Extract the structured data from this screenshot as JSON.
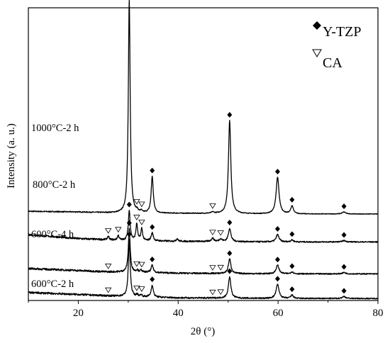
{
  "chart_data": {
    "type": "line",
    "title": "",
    "xlabel": "2θ (°)",
    "ylabel": "Intensity (a. u.)",
    "xlim": [
      10,
      80
    ],
    "xticks": [
      "20",
      "40",
      "60",
      "80"
    ],
    "grid": false,
    "legend_position": "top-right",
    "legend": [
      {
        "symbol": "◆",
        "label": "Y-TZP",
        "marker": "diamond"
      },
      {
        "symbol": "▽",
        "label": "CA",
        "marker": "triangle"
      }
    ],
    "peaks": {
      "y_tzp": [
        30.2,
        34.8,
        50.3,
        59.9,
        62.8,
        73.2
      ],
      "ca": [
        26.0,
        28.0,
        31.7,
        32.7,
        34.2,
        46.9,
        48.5
      ]
    },
    "series": [
      {
        "name": "1000°C-2 h",
        "baseline": [
          [
            10,
            13.4
          ],
          [
            20,
            13.3
          ],
          [
            30,
            13.1
          ],
          [
            40,
            13.1
          ],
          [
            60,
            13.0
          ],
          [
            80,
            13.0
          ]
        ],
        "peaks": [
          [
            30.2,
            32,
            0.22
          ],
          [
            34.8,
            5.5,
            0.25
          ],
          [
            50.3,
            14,
            0.28
          ],
          [
            59.9,
            5.5,
            0.35
          ],
          [
            62.8,
            1.2,
            0.3
          ],
          [
            73.2,
            0.3,
            0.4
          ],
          [
            31.8,
            0.25,
            0.2
          ],
          [
            32.6,
            0.25,
            0.2
          ],
          [
            46.9,
            0.2,
            0.3
          ]
        ],
        "markers": [
          {
            "x": 30.2,
            "type": "diamond"
          },
          {
            "x": 34.8,
            "type": "diamond"
          },
          {
            "x": 50.3,
            "type": "diamond"
          },
          {
            "x": 59.9,
            "type": "diamond"
          },
          {
            "x": 62.8,
            "type": "diamond"
          },
          {
            "x": 73.2,
            "type": "diamond"
          },
          {
            "x": 31.7,
            "type": "triangle"
          },
          {
            "x": 32.7,
            "type": "triangle"
          },
          {
            "x": 46.9,
            "type": "triangle"
          }
        ]
      },
      {
        "name": "800°C-2 h",
        "baseline": [
          [
            10,
            9.9
          ],
          [
            20,
            9.3
          ],
          [
            30,
            9.0
          ],
          [
            40,
            8.9
          ],
          [
            60,
            8.8
          ],
          [
            80,
            8.8
          ]
        ],
        "peaks": [
          [
            30.2,
            4.5,
            0.22
          ],
          [
            31.7,
            2.5,
            0.2
          ],
          [
            32.7,
            1.8,
            0.2
          ],
          [
            34.8,
            1.2,
            0.25
          ],
          [
            50.3,
            2.0,
            0.3
          ],
          [
            59.9,
            1.1,
            0.35
          ],
          [
            26.0,
            0.5,
            0.2
          ],
          [
            28.0,
            0.7,
            0.2
          ],
          [
            46.9,
            0.5,
            0.3
          ],
          [
            48.5,
            0.4,
            0.3
          ],
          [
            39.8,
            0.4,
            0.2
          ],
          [
            62.8,
            0.3,
            0.3
          ],
          [
            73.2,
            0.2,
            0.4
          ]
        ],
        "markers": [
          {
            "x": 30.2,
            "type": "diamond"
          },
          {
            "x": 34.8,
            "type": "diamond"
          },
          {
            "x": 50.3,
            "type": "diamond"
          },
          {
            "x": 59.9,
            "type": "diamond"
          },
          {
            "x": 62.8,
            "type": "diamond"
          },
          {
            "x": 73.2,
            "type": "diamond"
          },
          {
            "x": 26.0,
            "type": "triangle"
          },
          {
            "x": 28.0,
            "type": "triangle"
          },
          {
            "x": 31.7,
            "type": "triangle"
          },
          {
            "x": 32.7,
            "type": "triangle"
          },
          {
            "x": 46.9,
            "type": "triangle"
          },
          {
            "x": 48.5,
            "type": "triangle"
          }
        ]
      },
      {
        "name": "600°C-4 h",
        "baseline": [
          [
            10,
            4.8
          ],
          [
            20,
            4.5
          ],
          [
            26,
            4.3
          ],
          [
            30,
            4.3
          ],
          [
            40,
            4.1
          ],
          [
            60,
            4.0
          ],
          [
            80,
            4.0
          ]
        ],
        "peaks": [
          [
            30.2,
            6.5,
            0.22
          ],
          [
            34.8,
            1.1,
            0.25
          ],
          [
            50.3,
            2.2,
            0.3
          ],
          [
            59.9,
            1.3,
            0.35
          ],
          [
            62.8,
            0.3,
            0.3
          ],
          [
            73.2,
            0.2,
            0.4
          ],
          [
            31.8,
            0.3,
            0.2
          ],
          [
            32.6,
            0.3,
            0.2
          ]
        ],
        "markers": [
          {
            "x": 30.2,
            "type": "diamond"
          },
          {
            "x": 34.8,
            "type": "diamond"
          },
          {
            "x": 50.3,
            "type": "diamond"
          },
          {
            "x": 59.9,
            "type": "diamond"
          },
          {
            "x": 62.8,
            "type": "diamond"
          },
          {
            "x": 73.2,
            "type": "diamond"
          },
          {
            "x": 26.0,
            "type": "triangle"
          },
          {
            "x": 31.7,
            "type": "triangle"
          },
          {
            "x": 32.7,
            "type": "triangle"
          },
          {
            "x": 46.9,
            "type": "triangle"
          },
          {
            "x": 48.5,
            "type": "triangle"
          }
        ]
      },
      {
        "name": "600°C-2 h",
        "baseline": [
          [
            10,
            1.2
          ],
          [
            20,
            0.9
          ],
          [
            26,
            0.7
          ],
          [
            30,
            0.6
          ],
          [
            40,
            0.4
          ],
          [
            60,
            0.3
          ],
          [
            80,
            0.3
          ]
        ],
        "peaks": [
          [
            30.2,
            8.5,
            0.22
          ],
          [
            34.8,
            1.8,
            0.25
          ],
          [
            50.3,
            3.2,
            0.3
          ],
          [
            59.9,
            2.1,
            0.35
          ],
          [
            62.8,
            0.5,
            0.3
          ],
          [
            73.2,
            0.3,
            0.4
          ],
          [
            31.8,
            0.3,
            0.2
          ],
          [
            32.6,
            0.3,
            0.2
          ]
        ],
        "markers": [
          {
            "x": 30.2,
            "type": "diamond"
          },
          {
            "x": 34.8,
            "type": "diamond"
          },
          {
            "x": 50.3,
            "type": "diamond"
          },
          {
            "x": 59.9,
            "type": "diamond"
          },
          {
            "x": 62.8,
            "type": "diamond"
          },
          {
            "x": 73.2,
            "type": "diamond"
          },
          {
            "x": 26.0,
            "type": "triangle"
          },
          {
            "x": 31.7,
            "type": "triangle"
          },
          {
            "x": 32.7,
            "type": "triangle"
          },
          {
            "x": 46.9,
            "type": "triangle"
          },
          {
            "x": 48.5,
            "type": "triangle"
          }
        ]
      }
    ]
  }
}
